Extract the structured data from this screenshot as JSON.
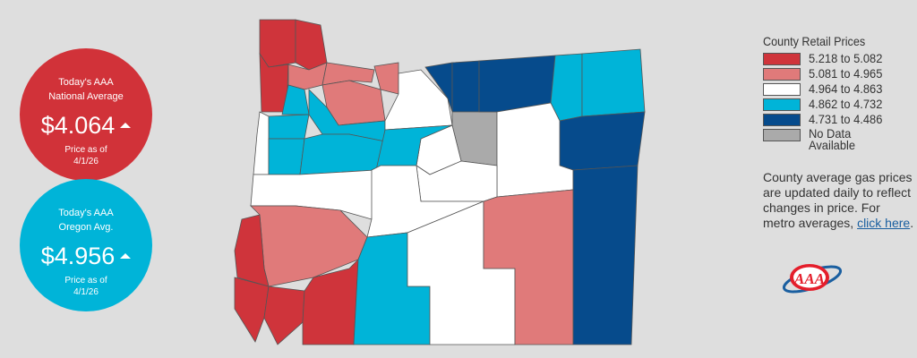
{
  "national": {
    "title_line1": "Today's AAA",
    "title_line2": "National Average",
    "price": "$4.064",
    "trend": "up",
    "date_label": "Price as of",
    "date": "4/1/26",
    "color": "#d13239"
  },
  "oregon": {
    "title_line1": "Today's AAA",
    "title_line2": "Oregon Avg.",
    "price": "$4.956",
    "trend": "up",
    "date_label": "Price as of",
    "date": "4/1/26",
    "color": "#00b4d8"
  },
  "legend": {
    "title": "County Retail Prices",
    "bins": [
      {
        "label": "5.218 to 5.082",
        "color": "#cf343b"
      },
      {
        "label": "5.081 to 4.965",
        "color": "#e07a7a"
      },
      {
        "label": "4.964 to 4.863",
        "color": "#ffffff"
      },
      {
        "label": "4.862 to 4.732",
        "color": "#00b4d8"
      },
      {
        "label": "4.731 to 4.486",
        "color": "#064b8c"
      },
      {
        "label_line1": "No Data",
        "label_line2": "Available",
        "color": "#aaaaaa"
      }
    ]
  },
  "note": {
    "text": "County average gas prices are updated daily to reflect changes in price. For metro averages, ",
    "link": "click here",
    "end": "."
  },
  "logo": {
    "text": "AAA"
  },
  "map": {
    "county_bins": [
      0,
      0,
      0,
      1,
      1,
      1,
      1,
      3,
      3,
      3,
      2,
      3,
      3,
      2,
      4,
      4,
      5,
      4,
      3,
      3,
      4,
      2,
      2,
      3,
      2,
      2,
      2,
      1,
      0,
      0,
      0,
      0,
      3,
      2,
      1,
      4
    ]
  }
}
